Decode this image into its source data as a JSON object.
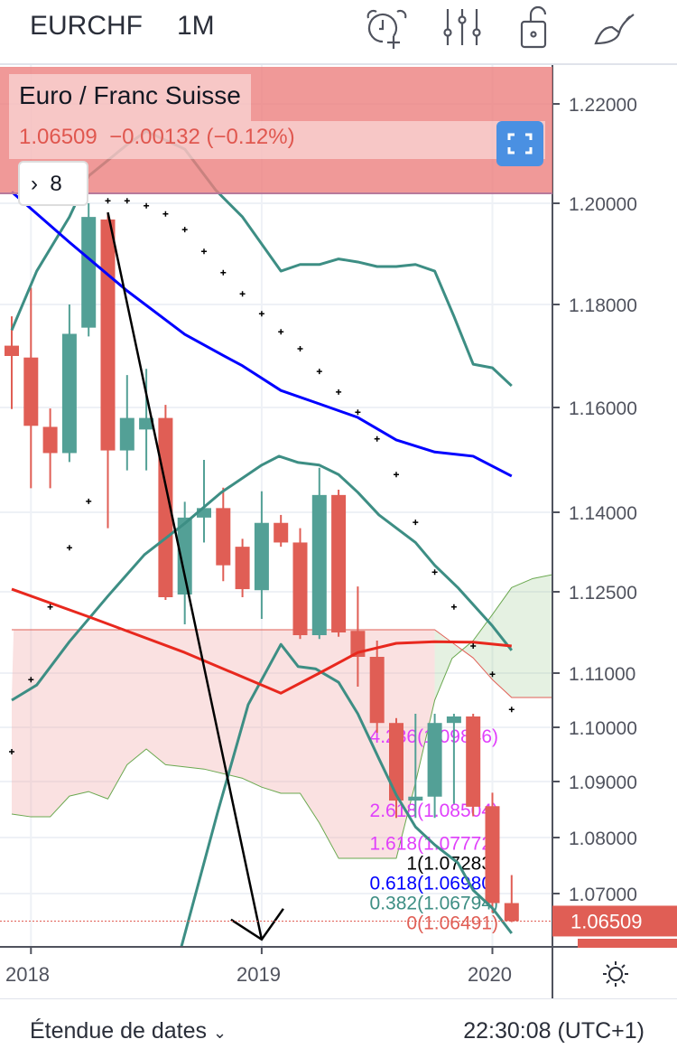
{
  "header": {
    "symbol": "EURCHF",
    "interval": "1M"
  },
  "toolbar": {
    "icons": [
      "alarm-add-icon",
      "indicators-icon",
      "lock-icon",
      "brush-icon"
    ]
  },
  "legend": {
    "title": "Euro / Franc Suisse",
    "price": "1.06509",
    "change": "−0.00132 (−0.12%)",
    "indicators_count": "8",
    "indicators_chevron": "›"
  },
  "bottom": {
    "date_range": "Étendue de dates",
    "date_range_chevron": "⌄",
    "clock": "22:30:08 (UTC+1)"
  },
  "colors": {
    "up": "#53a096",
    "down": "#e05e55",
    "ma_fast": "#0000ff",
    "ma_slow": "#e8281e",
    "bb": "#3d8e84",
    "accent": "#4a90e2"
  },
  "chart_data": {
    "type": "candlestick",
    "title": "Euro / Franc Suisse",
    "x_ticks": [
      {
        "label": "2018",
        "index": 1
      },
      {
        "label": "2019",
        "index": 13
      },
      {
        "label": "2020",
        "index": 25
      }
    ],
    "y_ticks": [
      "1.22000",
      "1.20000",
      "1.18000",
      "1.16000",
      "1.14000",
      "1.12500",
      "1.11000",
      "1.10000",
      "1.09000",
      "1.08000",
      "1.07000"
    ],
    "last_price": "1.06509",
    "months": [
      "2017-12",
      "2018-01",
      "2018-02",
      "2018-03",
      "2018-04",
      "2018-05",
      "2018-06",
      "2018-07",
      "2018-08",
      "2018-09",
      "2018-10",
      "2018-11",
      "2018-12",
      "2019-01",
      "2019-02",
      "2019-03",
      "2019-04",
      "2019-05",
      "2019-06",
      "2019-07",
      "2019-08",
      "2019-09",
      "2019-10",
      "2019-11",
      "2019-12",
      "2020-01",
      "2020-02"
    ],
    "ohlc": [
      [
        1.172,
        1.1777,
        1.1597,
        1.17
      ],
      [
        1.1697,
        1.1833,
        1.1446,
        1.1565
      ],
      [
        1.1563,
        1.1598,
        1.1446,
        1.1513
      ],
      [
        1.1513,
        1.18,
        1.1496,
        1.1743
      ],
      [
        1.1755,
        1.2,
        1.1738,
        1.1973
      ],
      [
        1.1968,
        1.1982,
        1.137,
        1.1518
      ],
      [
        1.1518,
        1.1663,
        1.148,
        1.158
      ],
      [
        1.1558,
        1.1675,
        1.148,
        1.158
      ],
      [
        1.158,
        1.1605,
        1.1235,
        1.124
      ],
      [
        1.1245,
        1.142,
        1.119,
        1.139
      ],
      [
        1.139,
        1.15,
        1.1343,
        1.1408
      ],
      [
        1.1408,
        1.1447,
        1.127,
        1.13
      ],
      [
        1.1335,
        1.135,
        1.124,
        1.1255
      ],
      [
        1.1253,
        1.144,
        1.12,
        1.138
      ],
      [
        1.138,
        1.1395,
        1.1335,
        1.1343
      ],
      [
        1.1343,
        1.137,
        1.1163,
        1.117
      ],
      [
        1.117,
        1.1485,
        1.1163,
        1.1433
      ],
      [
        1.1433,
        1.1443,
        1.1167,
        1.1175
      ],
      [
        1.1178,
        1.126,
        1.1075,
        1.113
      ],
      [
        1.113,
        1.116,
        1.099,
        1.1008
      ],
      [
        1.1008,
        1.1017,
        1.0835,
        1.0866
      ],
      [
        1.0866,
        1.1025,
        1.0835,
        1.0873
      ],
      [
        1.0873,
        1.1025,
        1.0835,
        1.1008
      ],
      [
        1.1008,
        1.1025,
        1.086,
        1.102
      ],
      [
        1.102,
        1.1025,
        1.0838,
        1.0855
      ],
      [
        1.0856,
        1.088,
        1.0666,
        1.0683
      ],
      [
        1.0683,
        1.0733,
        1.0649,
        1.06509
      ]
    ],
    "ma_fast": [
      [
        0,
        1.2023
      ],
      [
        3,
        1.1923
      ],
      [
        6,
        1.1827
      ],
      [
        9,
        1.1742
      ],
      [
        11,
        1.1701
      ],
      [
        12,
        1.1681
      ],
      [
        14,
        1.1633
      ],
      [
        16,
        1.1607
      ],
      [
        18,
        1.1581
      ],
      [
        20,
        1.1538
      ],
      [
        22,
        1.1515
      ],
      [
        24,
        1.1507
      ],
      [
        26,
        1.1469
      ]
    ],
    "ma_slow": [
      [
        0,
        1.1255
      ],
      [
        4,
        1.1204
      ],
      [
        9,
        1.1138
      ],
      [
        11,
        1.1108
      ],
      [
        14,
        1.1063
      ],
      [
        16,
        1.11
      ],
      [
        18,
        1.1138
      ],
      [
        20,
        1.1155
      ],
      [
        22,
        1.1158
      ],
      [
        24,
        1.1157
      ],
      [
        26,
        1.115
      ]
    ],
    "bb_upper": [
      [
        0,
        1.175
      ],
      [
        1.3,
        1.1866
      ],
      [
        3,
        1.1973
      ],
      [
        4,
        1.2055
      ],
      [
        6,
        1.2118
      ],
      [
        7,
        1.2145
      ],
      [
        9,
        1.2109
      ],
      [
        10.6,
        1.2027
      ],
      [
        12,
        1.1973
      ],
      [
        14,
        1.1866
      ],
      [
        15,
        1.1879
      ],
      [
        16,
        1.1879
      ],
      [
        17,
        1.189
      ],
      [
        18,
        1.1884
      ],
      [
        19,
        1.1875
      ],
      [
        20,
        1.1875
      ],
      [
        21,
        1.1879
      ],
      [
        22,
        1.1866
      ],
      [
        23,
        1.1777
      ],
      [
        24,
        1.1684
      ],
      [
        25,
        1.1677
      ],
      [
        26,
        1.1642
      ]
    ],
    "bb_lower": [
      [
        0,
        1.105
      ],
      [
        1.3,
        1.1078
      ],
      [
        3,
        1.1158
      ],
      [
        5,
        1.1242
      ],
      [
        6.9,
        1.132
      ],
      [
        9,
        1.1379
      ],
      [
        10.9,
        1.1438
      ],
      [
        13,
        1.149
      ],
      [
        13.9,
        1.1507
      ],
      [
        14.9,
        1.1495
      ],
      [
        16,
        1.149
      ],
      [
        17,
        1.1472
      ],
      [
        18,
        1.1438
      ],
      [
        19.1,
        1.1395
      ],
      [
        21,
        1.1343
      ],
      [
        22,
        1.13
      ],
      [
        23.2,
        1.1258
      ],
      [
        25,
        1.1187
      ],
      [
        26,
        1.1142
      ]
    ],
    "bb_mid": [
      [
        8.8,
        1.0602
      ],
      [
        10.7,
        1.0844
      ],
      [
        12.3,
        1.1042
      ],
      [
        14,
        1.1153
      ],
      [
        14.9,
        1.1112
      ],
      [
        15.8,
        1.1108
      ],
      [
        17,
        1.1083
      ],
      [
        18,
        1.1025
      ],
      [
        19.1,
        1.0942
      ],
      [
        20,
        1.0876
      ],
      [
        21,
        1.0819
      ],
      [
        22,
        1.0787
      ],
      [
        23.2,
        1.0755
      ],
      [
        24,
        1.0706
      ],
      [
        25,
        1.0674
      ],
      [
        26,
        1.0629
      ]
    ],
    "psar": [
      1.0955,
      1.1088,
      1.1222,
      1.1333,
      1.1421,
      1.2005,
      1.2005,
      1.1995,
      1.1979,
      1.1948,
      1.1905,
      1.1863,
      1.1821,
      1.1782,
      1.1747,
      1.1714,
      1.167,
      1.163,
      1.1591,
      1.154,
      1.1472,
      1.1381,
      1.1287,
      1.1222,
      1.115,
      1.1098,
      1.1033
    ],
    "cloud_span_a": [
      [
        0,
        1.0842
      ],
      [
        1,
        1.0837
      ],
      [
        2,
        1.0837
      ],
      [
        3,
        1.0874
      ],
      [
        4,
        1.0882
      ],
      [
        5,
        1.0869
      ],
      [
        6,
        1.0931
      ],
      [
        7,
        1.096
      ],
      [
        8,
        1.0931
      ],
      [
        10,
        1.0923
      ],
      [
        12,
        1.0906
      ],
      [
        13,
        1.089
      ],
      [
        14,
        1.0879
      ],
      [
        15,
        1.0879
      ],
      [
        16,
        1.0826
      ],
      [
        17,
        1.0763
      ],
      [
        20,
        1.0763
      ],
      [
        21,
        1.0898
      ],
      [
        22,
        1.105
      ],
      [
        22.9,
        1.1127
      ],
      [
        24,
        1.116
      ],
      [
        25,
        1.1208
      ],
      [
        26,
        1.1258
      ],
      [
        27.1,
        1.1275
      ],
      [
        28.2,
        1.1283
      ]
    ],
    "cloud_span_b": [
      [
        0,
        1.118
      ],
      [
        22,
        1.118
      ],
      [
        24,
        1.1128
      ],
      [
        25,
        1.1088
      ],
      [
        26,
        1.1055
      ],
      [
        28.2,
        1.1055
      ]
    ],
    "drawing_line": [
      [
        5,
        1.1982
      ],
      [
        13,
        1.0618
      ]
    ],
    "fib_levels": [
      {
        "label": "4.236(1.09846)",
        "price": 1.09846,
        "color": "#e040fb"
      },
      {
        "label": "2.618(1.08504)",
        "price": 1.08504,
        "color": "#e040fb"
      },
      {
        "label": "1.618(1.07772)",
        "price": 1.07772,
        "color": "#e040fb"
      },
      {
        "label": "1(1.07283)",
        "price": 1.07283,
        "color": "#000000"
      },
      {
        "label": "0.618(1.06980)",
        "price": 1.0698,
        "color": "#0000ff"
      },
      {
        "label": "0.382(1.06794)",
        "price": 1.06794,
        "color": "#3d8e84"
      },
      {
        "label": "0(1.06491)",
        "price": 1.06491,
        "color": "#e05e55"
      }
    ]
  }
}
